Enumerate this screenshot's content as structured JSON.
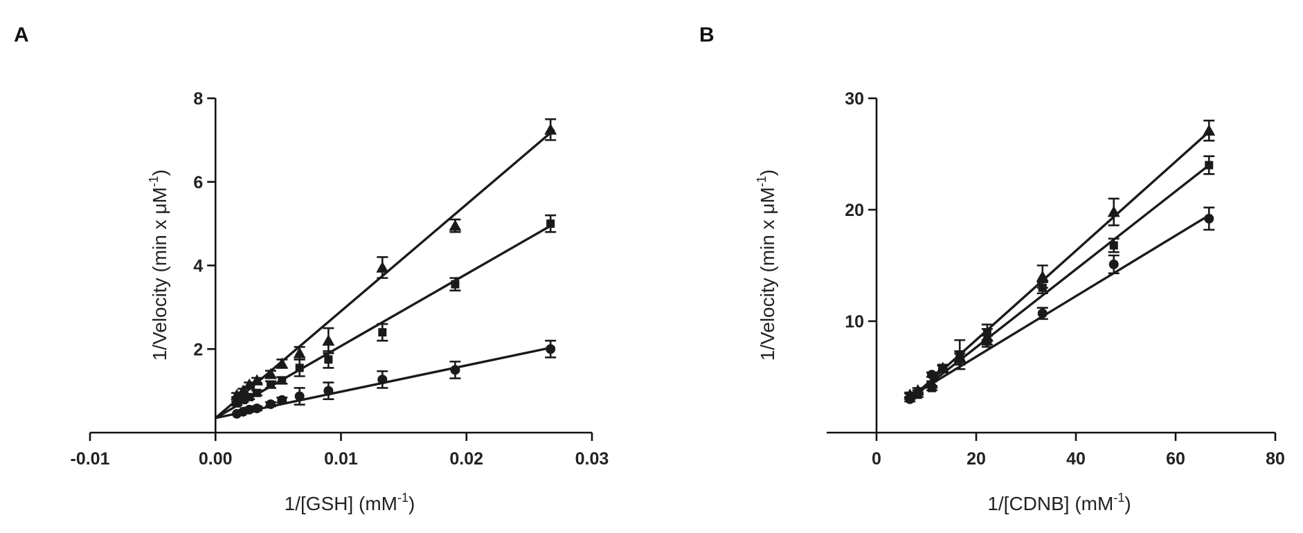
{
  "panels": {
    "a": {
      "label": "A"
    },
    "b": {
      "label": "B"
    }
  },
  "chart_data": [
    {
      "panel": "A",
      "type": "line",
      "title": "",
      "xlabel": "1/[GSH] (mM",
      "xlabel_sup": "-1",
      "xlabel_tail": ")",
      "ylabel": "1/Velocity (min x  μM",
      "ylabel_sup": "-1",
      "ylabel_tail": ")",
      "xlim": [
        -0.01,
        0.03
      ],
      "ylim": [
        0,
        8
      ],
      "xticks": [
        -0.01,
        0.0,
        0.01,
        0.02,
        0.03
      ],
      "xtick_labels": [
        "-0.01",
        "0.00",
        "0.01",
        "0.02",
        "0.03"
      ],
      "yticks": [
        2,
        4,
        6,
        8
      ],
      "ytick_labels": [
        "2",
        "4",
        "6",
        "8"
      ],
      "series": [
        {
          "name": "circle",
          "marker": "circle",
          "x": [
            0.0017,
            0.0022,
            0.0027,
            0.0033,
            0.0044,
            0.0053,
            0.0067,
            0.009,
            0.0133,
            0.0191,
            0.0267
          ],
          "y": [
            0.45,
            0.5,
            0.55,
            0.58,
            0.68,
            0.78,
            0.87,
            1.0,
            1.27,
            1.5,
            2.0
          ],
          "err": [
            0.04,
            0.04,
            0.05,
            0.05,
            0.05,
            0.06,
            0.2,
            0.2,
            0.2,
            0.2,
            0.2
          ],
          "fit": [
            [
              0.0,
              0.35
            ],
            [
              0.027,
              2.05
            ]
          ]
        },
        {
          "name": "square",
          "marker": "square",
          "x": [
            0.0017,
            0.0022,
            0.0027,
            0.0033,
            0.0044,
            0.0053,
            0.0067,
            0.009,
            0.0133,
            0.0191,
            0.0267
          ],
          "y": [
            0.7,
            0.78,
            0.85,
            0.95,
            1.15,
            1.25,
            1.55,
            1.75,
            2.4,
            3.55,
            5.0
          ],
          "err": [
            0.05,
            0.05,
            0.05,
            0.06,
            0.08,
            0.08,
            0.2,
            0.2,
            0.2,
            0.15,
            0.2
          ],
          "fit": [
            [
              0.0,
              0.35
            ],
            [
              0.027,
              5.0
            ]
          ]
        },
        {
          "name": "triangle",
          "marker": "triangle",
          "x": [
            0.0017,
            0.0022,
            0.0027,
            0.0033,
            0.0044,
            0.0053,
            0.0067,
            0.009,
            0.0133,
            0.0191,
            0.0267
          ],
          "y": [
            0.9,
            1.0,
            1.15,
            1.25,
            1.4,
            1.65,
            1.9,
            2.2,
            3.95,
            4.95,
            7.25
          ],
          "err": [
            0.05,
            0.05,
            0.05,
            0.06,
            0.08,
            0.1,
            0.15,
            0.3,
            0.25,
            0.15,
            0.25
          ],
          "fit": [
            [
              0.0,
              0.35
            ],
            [
              0.027,
              7.25
            ]
          ]
        }
      ]
    },
    {
      "panel": "B",
      "type": "line",
      "title": "",
      "xlabel": "1/[CDNB] (mM",
      "xlabel_sup": "-1",
      "xlabel_tail": ")",
      "ylabel": "1/Velocity (min x  μM",
      "ylabel_sup": "-1",
      "ylabel_tail": ")",
      "xlim": [
        -10,
        80
      ],
      "ylim": [
        0,
        30
      ],
      "xticks": [
        0,
        20,
        40,
        60,
        80
      ],
      "xtick_labels": [
        "0",
        "20",
        "40",
        "60",
        "80"
      ],
      "yticks": [
        10,
        20,
        30
      ],
      "ytick_labels": [
        "10",
        "20",
        "30"
      ],
      "series": [
        {
          "name": "circle",
          "marker": "circle",
          "x": [
            6.7,
            8.3,
            11.1,
            13.3,
            16.7,
            22.2,
            33.3,
            47.6,
            66.7
          ],
          "y": [
            3.0,
            3.6,
            5.2,
            5.7,
            6.6,
            8.2,
            10.7,
            15.1,
            19.2
          ],
          "err": [
            0.2,
            0.2,
            0.2,
            0.3,
            0.5,
            0.5,
            0.5,
            0.8,
            1.0
          ],
          "fit": [
            [
              6.7,
              3.2
            ],
            [
              66.7,
              19.5
            ]
          ]
        },
        {
          "name": "square",
          "marker": "square",
          "x": [
            6.7,
            8.3,
            11.1,
            13.3,
            16.7,
            22.2,
            33.3,
            47.6,
            66.7
          ],
          "y": [
            3.3,
            3.4,
            4.0,
            5.7,
            7.0,
            9.0,
            13.0,
            16.8,
            24.0
          ],
          "err": [
            0.2,
            0.2,
            0.2,
            0.3,
            1.3,
            0.7,
            0.5,
            0.6,
            0.8
          ],
          "fit": [
            [
              6.7,
              3.0
            ],
            [
              66.7,
              24.0
            ]
          ]
        },
        {
          "name": "triangle",
          "marker": "triangle",
          "x": [
            6.7,
            8.3,
            11.1,
            13.3,
            16.7,
            22.2,
            33.3,
            47.6,
            66.7
          ],
          "y": [
            3.4,
            3.8,
            4.4,
            5.8,
            6.8,
            8.6,
            14.0,
            19.8,
            27.1
          ],
          "err": [
            0.2,
            0.2,
            0.2,
            0.3,
            0.5,
            0.7,
            1.0,
            1.2,
            0.9
          ],
          "fit": [
            [
              6.7,
              3.0
            ],
            [
              66.7,
              27.0
            ]
          ]
        }
      ]
    }
  ]
}
